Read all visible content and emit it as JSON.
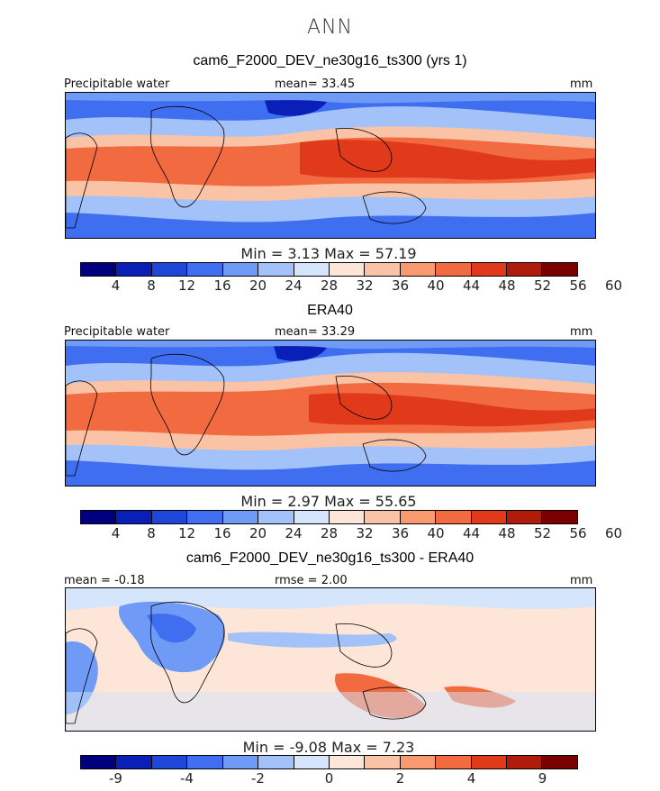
{
  "season": "ANN",
  "colors": {
    "scale14": [
      "#00007f",
      "#0a1fb8",
      "#1e46d8",
      "#3f6ff0",
      "#6f9af5",
      "#a3c2f9",
      "#d4e5fc",
      "#fde5d8",
      "#fbc3a5",
      "#f8996f",
      "#f26a40",
      "#e03a1a",
      "#b01c0c",
      "#7a0000"
    ],
    "diff": [
      "#00007f",
      "#0a1fb8",
      "#1e46d8",
      "#3f6ff0",
      "#6f9af5",
      "#a3c2f9",
      "#d4e5fc",
      "#fde5d8",
      "#fbc3a5",
      "#f8996f",
      "#f26a40",
      "#e03a1a",
      "#b01c0c",
      "#7a0000"
    ]
  },
  "panels": {
    "model": {
      "title": "cam6_F2000_DEV_ne30g16_ts300 (yrs 1)",
      "left_label": "Precipitable water",
      "center_label": "mean=   33.45",
      "units": "mm",
      "minmax": "Min =    3.13  Max =   57.19",
      "ticks": [
        "4",
        "8",
        "12",
        "16",
        "20",
        "24",
        "28",
        "32",
        "36",
        "40",
        "44",
        "48",
        "52",
        "56",
        "60"
      ]
    },
    "obs": {
      "title": "ERA40",
      "left_label": "Precipitable water",
      "center_label": "mean=   33.29",
      "units": "mm",
      "minmax": "Min =    2.97  Max =   55.65",
      "ticks": [
        "4",
        "8",
        "12",
        "16",
        "20",
        "24",
        "28",
        "32",
        "36",
        "40",
        "44",
        "48",
        "52",
        "56",
        "60"
      ]
    },
    "diff": {
      "title": "cam6_F2000_DEV_ne30g16_ts300 - ERA40",
      "left_label": "mean =  -0.18",
      "center_label": "rmse =    2.00",
      "units": "mm",
      "minmax": "Min =  -9.08  Max =    7.23",
      "ticks": [
        "-9",
        "",
        "-4",
        "",
        "-2",
        "",
        "0",
        "",
        "2",
        "",
        "4",
        "",
        "9"
      ]
    }
  },
  "chart_data": [
    {
      "type": "heatmap",
      "title": "cam6_F2000_DEV_ne30g16_ts300 (yrs 1)",
      "variable": "Precipitable water",
      "units": "mm",
      "mean": 33.45,
      "min": 3.13,
      "max": 57.19,
      "contour_levels": [
        4,
        8,
        12,
        16,
        20,
        24,
        28,
        32,
        36,
        40,
        44,
        48,
        52,
        56,
        60
      ]
    },
    {
      "type": "heatmap",
      "title": "ERA40",
      "variable": "Precipitable water",
      "units": "mm",
      "mean": 33.29,
      "min": 2.97,
      "max": 55.65,
      "contour_levels": [
        4,
        8,
        12,
        16,
        20,
        24,
        28,
        32,
        36,
        40,
        44,
        48,
        52,
        56,
        60
      ]
    },
    {
      "type": "heatmap",
      "title": "cam6_F2000_DEV_ne30g16_ts300 - ERA40",
      "units": "mm",
      "mean": -0.18,
      "rmse": 2.0,
      "min": -9.08,
      "max": 7.23,
      "contour_levels": [
        -9,
        -4,
        -2,
        0,
        2,
        4,
        9
      ]
    }
  ]
}
